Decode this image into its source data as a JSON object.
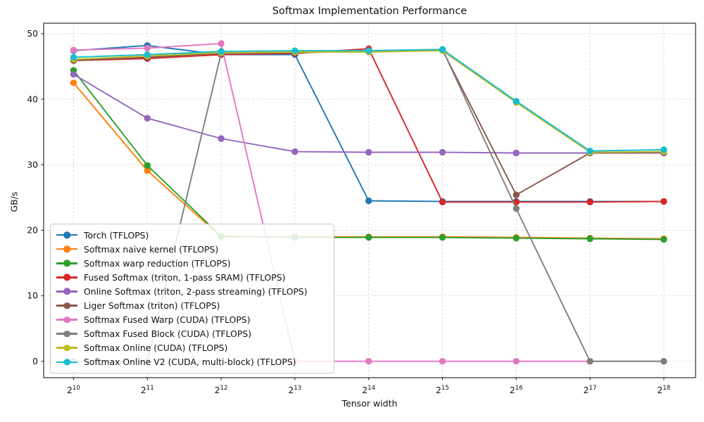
{
  "chart_data": {
    "type": "line",
    "title": "Softmax Implementation Performance",
    "xlabel": "Tensor width",
    "ylabel": "GB/s",
    "x_tick_base": 2,
    "x_exponents": [
      10,
      11,
      12,
      13,
      14,
      15,
      16,
      17,
      18
    ],
    "x_tick_labels": [
      "2^10",
      "2^11",
      "2^12",
      "2^13",
      "2^14",
      "2^15",
      "2^16",
      "2^17",
      "2^18"
    ],
    "y_axis": {
      "ticks": [
        0,
        10,
        20,
        30,
        40,
        50
      ],
      "min": -2.5,
      "max": 51.6
    },
    "grid": true,
    "grid_style": "dashed",
    "legend_position": "lower left",
    "series": [
      {
        "id": "torch",
        "name": "Torch (TFLOPS)",
        "color": "#1f77b4",
        "values": [
          47.4,
          48.2,
          46.8,
          46.8,
          24.5,
          24.4,
          24.4,
          24.4,
          24.4
        ]
      },
      {
        "id": "naive",
        "name": "Softmax naive kernel (TFLOPS)",
        "color": "#ff7f0e",
        "values": [
          42.5,
          29.1,
          19.0,
          19.0,
          19.0,
          19.0,
          18.9,
          18.8,
          18.7
        ]
      },
      {
        "id": "warp-reduction",
        "name": "Softmax warp reduction (TFLOPS)",
        "color": "#2ca02c",
        "values": [
          44.4,
          29.9,
          19.1,
          18.9,
          18.9,
          18.9,
          18.8,
          18.7,
          18.6
        ]
      },
      {
        "id": "fused-sram",
        "name": "Fused Softmax (triton, 1-pass SRAM) (TFLOPS)",
        "color": "#d62728",
        "values": [
          45.9,
          46.2,
          46.8,
          47.0,
          47.7,
          24.3,
          24.3,
          24.3,
          24.4
        ]
      },
      {
        "id": "online-triton",
        "name": "Online Softmax (triton, 2-pass streaming) (TFLOPS)",
        "color": "#9467bd",
        "values": [
          43.8,
          37.1,
          34.0,
          32.0,
          31.9,
          31.9,
          31.8,
          31.8,
          31.8
        ]
      },
      {
        "id": "liger",
        "name": "Liger Softmax (triton) (TFLOPS)",
        "color": "#8c564b",
        "values": [
          45.9,
          46.4,
          47.0,
          47.1,
          47.3,
          47.5,
          25.4,
          31.8,
          31.9
        ]
      },
      {
        "id": "fused-warp-cuda",
        "name": "Softmax Fused Warp (CUDA) (TFLOPS)",
        "color": "#e377c2",
        "values": [
          47.5,
          47.8,
          48.5,
          0.0,
          0.0,
          0.0,
          0.0,
          0.0,
          0.0
        ]
      },
      {
        "id": "fused-block-cuda",
        "name": "Softmax Fused Block (CUDA) (TFLOPS)",
        "color": "#7f7f7f",
        "values": [
          0.0,
          0.0,
          47.0,
          47.2,
          47.4,
          47.6,
          23.3,
          0.0,
          0.0
        ]
      },
      {
        "id": "online-cuda",
        "name": "Softmax Online (CUDA) (TFLOPS)",
        "color": "#bcbd22",
        "values": [
          46.1,
          46.6,
          47.1,
          47.2,
          47.2,
          47.4,
          39.5,
          31.9,
          32.0
        ]
      },
      {
        "id": "online-v2-cuda",
        "name": "Softmax Online V2 (CUDA, multi-block) (TFLOPS)",
        "color": "#17becf",
        "values": [
          46.4,
          46.8,
          47.3,
          47.4,
          47.4,
          47.6,
          39.7,
          32.1,
          32.3
        ]
      }
    ]
  }
}
